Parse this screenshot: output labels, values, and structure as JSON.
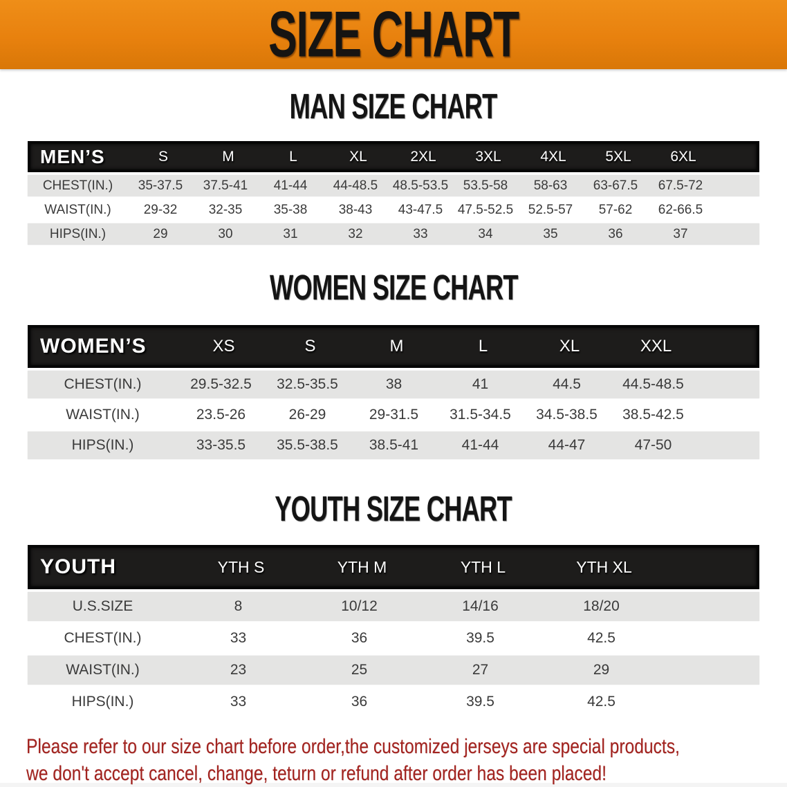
{
  "banner": {
    "title": "SIZE CHART"
  },
  "colors": {
    "banner_bg": "#E8810E",
    "banner_hi": "#EF8E18",
    "banner_lo": "#D97707",
    "row_gray": "#E4E4E3",
    "warn_red": "#A32420"
  },
  "sections": [
    {
      "title": "MAN SIZE CHART",
      "group_label": "MEN’S",
      "columns": [
        "S",
        "M",
        "L",
        "XL",
        "2XL",
        "3XL",
        "4XL",
        "5XL",
        "6XL"
      ],
      "rows": [
        {
          "label": "CHEST(IN.)",
          "values": [
            "35-37.5",
            "37.5-41",
            "41-44",
            "44-48.5",
            "48.5-53.5",
            "53.5-58",
            "58-63",
            "63-67.5",
            "67.5-72"
          ]
        },
        {
          "label": "WAIST(IN.)",
          "values": [
            "29-32",
            "32-35",
            "35-38",
            "38-43",
            "43-47.5",
            "47.5-52.5",
            "52.5-57",
            "57-62",
            "62-66.5"
          ]
        },
        {
          "label": "HIPS(IN.)",
          "values": [
            "29",
            "30",
            "31",
            "32",
            "33",
            "34",
            "35",
            "36",
            "37"
          ]
        }
      ]
    },
    {
      "title": "WOMEN SIZE CHART",
      "group_label": "WOMEN’S",
      "columns": [
        "XS",
        "S",
        "M",
        "L",
        "XL",
        "XXL"
      ],
      "rows": [
        {
          "label": "CHEST(IN.)",
          "values": [
            "29.5-32.5",
            "32.5-35.5",
            "38",
            "41",
            "44.5",
            "44.5-48.5"
          ]
        },
        {
          "label": "WAIST(IN.)",
          "values": [
            "23.5-26",
            "26-29",
            "29-31.5",
            "31.5-34.5",
            "34.5-38.5",
            "38.5-42.5"
          ]
        },
        {
          "label": "HIPS(IN.)",
          "values": [
            "33-35.5",
            "35.5-38.5",
            "38.5-41",
            "41-44",
            "44-47",
            "47-50"
          ]
        }
      ]
    },
    {
      "title": "YOUTH SIZE CHART",
      "group_label": "YOUTH",
      "columns": [
        "YTH S",
        "YTH M",
        "YTH L",
        "YTH XL"
      ],
      "rows": [
        {
          "label": "U.S.SIZE",
          "values": [
            "8",
            "10/12",
            "14/16",
            "18/20"
          ]
        },
        {
          "label": "CHEST(IN.)",
          "values": [
            "33",
            "36",
            "39.5",
            "42.5"
          ]
        },
        {
          "label": "WAIST(IN.)",
          "values": [
            "23",
            "25",
            "27",
            "29"
          ]
        },
        {
          "label": "HIPS(IN.)",
          "values": [
            "33",
            "36",
            "39.5",
            "42.5"
          ]
        }
      ]
    }
  ],
  "disclaimer": {
    "line1": "Please refer to our size chart before order,the customized jerseys are special products,",
    "line2": "we don't accept cancel, change, teturn or refund after order has been placed!"
  }
}
